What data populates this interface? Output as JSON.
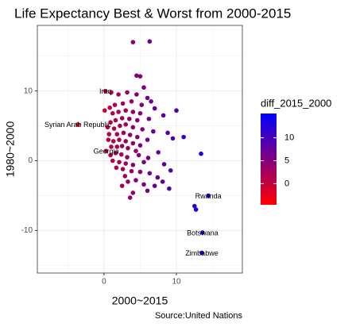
{
  "chart_data": {
    "type": "scatter",
    "title": "Life Expectancy Best & Worst from 2000-2015",
    "x_label": "2000~2015",
    "y_label": "1980~2000",
    "caption": "Source:United Nations",
    "legend_title": "diff_2015_2000",
    "grid": true,
    "xlim": [
      -9.2,
      19.1
    ],
    "ylim": [
      -16.1,
      19.4
    ],
    "xticks": [
      0,
      10
    ],
    "yticks": [
      -10,
      0,
      10
    ],
    "minor_xticks": [
      -5,
      5,
      15
    ],
    "minor_yticks": [
      -15,
      -5,
      5,
      15
    ],
    "color_scale": {
      "low": "#ff0000",
      "high": "#0000ff",
      "limits": [
        -4.6,
        15.3
      ],
      "ticks": [
        0,
        5,
        10
      ]
    },
    "x": [
      0.2,
      -3.6,
      0.3,
      14.4,
      13.6,
      13.5,
      4,
      6.3,
      4.5,
      5,
      10,
      13.4,
      12.5,
      12.7,
      1,
      2,
      3.2,
      4.5,
      5.5,
      6,
      6.5,
      5.2,
      3.8,
      2.6,
      1.5,
      0.8,
      1.2,
      2,
      3,
      4,
      5,
      7,
      8.2,
      6.2,
      4.6,
      3.5,
      2.5,
      1.6,
      0.9,
      0.5,
      1.4,
      2.2,
      3,
      4,
      5.3,
      6.8,
      8.8,
      9.5,
      0.7,
      1.8,
      2.7,
      3.6,
      4.6,
      0.6,
      1.3,
      2.1,
      3,
      4,
      5,
      6,
      1,
      1.8,
      2.5,
      3.3,
      4.4,
      0.9,
      1.6,
      2.4,
      3.2,
      4.8,
      6.1,
      7.5,
      1.2,
      2.1,
      3,
      4,
      5.5,
      2.6,
      3.8,
      5,
      6.3,
      7.4,
      9.2,
      8.1,
      2.5,
      3.3,
      4.4,
      5.5,
      7,
      9,
      4,
      6,
      2.9,
      1.7,
      3.6,
      0.1,
      11,
      8.3
    ],
    "values": [
      10,
      5.2,
      1.4,
      -5,
      -10.3,
      -13.2,
      17,
      17.1,
      12.2,
      12.1,
      7.2,
      1,
      -6.5,
      -7,
      9.8,
      9.5,
      9.8,
      9.5,
      10.5,
      9,
      8.5,
      8,
      8.5,
      8.2,
      8,
      7.6,
      6.8,
      7,
      7.2,
      7,
      6.8,
      7.5,
      6.5,
      6,
      5.8,
      6,
      6.1,
      5.8,
      5.5,
      4.8,
      4.6,
      5,
      5.2,
      4.8,
      4.5,
      4.2,
      4,
      3.2,
      3.8,
      3.8,
      4,
      3.7,
      3.4,
      3,
      2.8,
      3,
      2.8,
      2.5,
      2.2,
      3,
      2,
      2,
      2.1,
      1.8,
      1.4,
      0.8,
      1.1,
      0.9,
      0.5,
      0.8,
      0.4,
      1.2,
      0,
      -0.2,
      -0.4,
      -0.6,
      -0.2,
      -1.2,
      -1.5,
      -1.6,
      -1.8,
      -2.4,
      -1.4,
      -3,
      -3.6,
      -3,
      -2.8,
      -3.4,
      -3.6,
      -4,
      -4.6,
      -4.3,
      -2.2,
      -1,
      -5.3,
      7.2,
      3.4,
      -0.5
    ],
    "labels": [
      "Iraq",
      "Syrian Arab Republic",
      "Georgia",
      "Rwanda",
      "Botswana",
      "Zimbabwe",
      null,
      null,
      null,
      null,
      null,
      null,
      null,
      null,
      null,
      null,
      null,
      null,
      null,
      null,
      null,
      null,
      null,
      null,
      null,
      null,
      null,
      null,
      null,
      null,
      null,
      null,
      null,
      null,
      null,
      null,
      null,
      null,
      null,
      null,
      null,
      null,
      null,
      null,
      null,
      null,
      null,
      null,
      null,
      null,
      null,
      null,
      null,
      null,
      null,
      null,
      null,
      null,
      null,
      null,
      null,
      null,
      null,
      null,
      null,
      null,
      null,
      null,
      null,
      null,
      null,
      null,
      null,
      null,
      null,
      null,
      null,
      null,
      null,
      null,
      null,
      null,
      null,
      null,
      null,
      null,
      null,
      null,
      null,
      null,
      null,
      null,
      null,
      null,
      null,
      null,
      null,
      null
    ]
  }
}
